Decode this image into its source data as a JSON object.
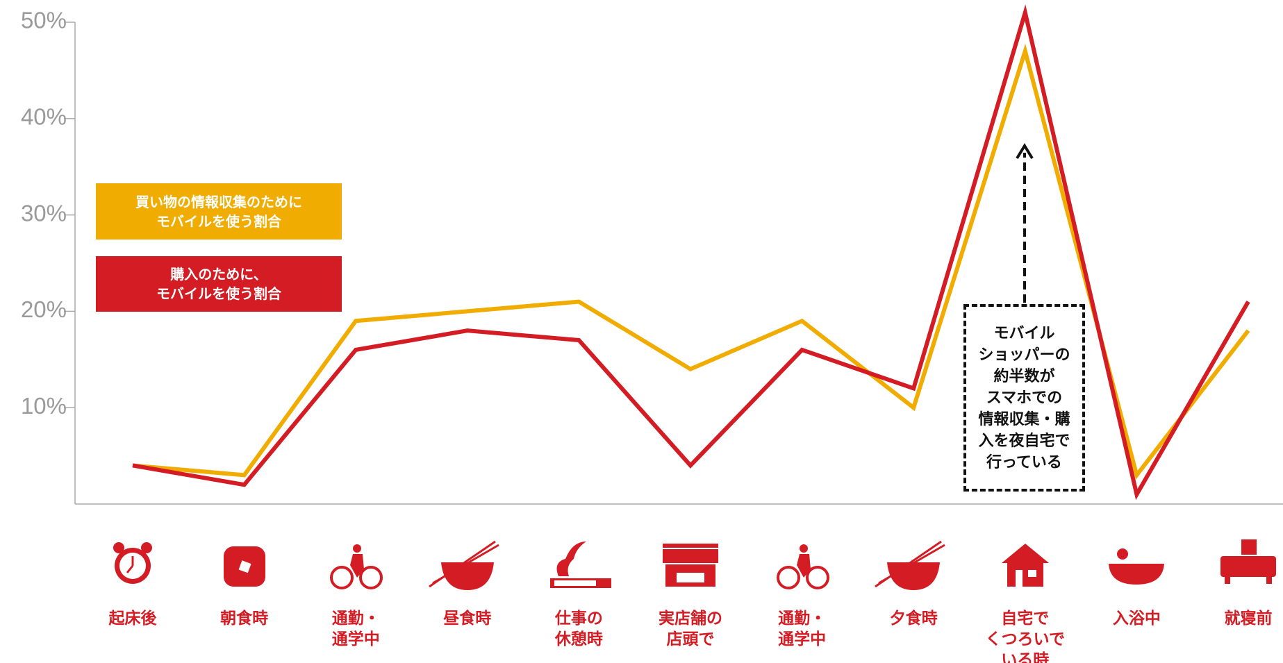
{
  "chart_data": {
    "type": "line",
    "categories": [
      "起床後",
      "朝食時",
      "通勤・\n通学中",
      "昼食時",
      "仕事の\n休憩時",
      "実店舗の\n店頭で",
      "通勤・\n通学中",
      "夕食時",
      "自宅で\nくつろいで\nいる時",
      "入浴中",
      "就寝前"
    ],
    "series": [
      {
        "name": "買い物の情報収集のために\nモバイルを使う割合",
        "color": "#f0ac00",
        "values": [
          4,
          3,
          19,
          20,
          21,
          14,
          19,
          10,
          47,
          3,
          18
        ]
      },
      {
        "name": "購入のために、\nモバイルを使う割合",
        "color": "#d41c24",
        "values": [
          4,
          2,
          16,
          18,
          17,
          4,
          16,
          12,
          51,
          1,
          21
        ]
      }
    ],
    "ylim": [
      0,
      50
    ],
    "yticks": [
      {
        "value": 10,
        "label": "10%"
      },
      {
        "value": 20,
        "label": "20%"
      },
      {
        "value": 30,
        "label": "30%"
      },
      {
        "value": 40,
        "label": "40%"
      },
      {
        "value": 50,
        "label": "50%"
      }
    ],
    "annotation": "モバイル\nショッパーの\n約半数が\nスマホでの\n情報収集・購\n入を夜自宅で\n行っている"
  }
}
